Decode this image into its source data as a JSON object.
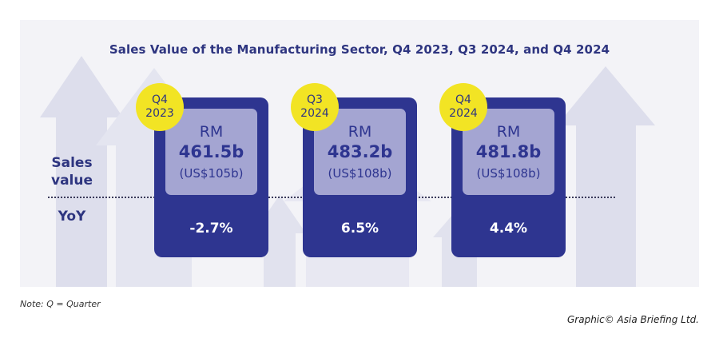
{
  "chart_data": {
    "type": "table",
    "title": "Sales Value of the Manufacturing Sector, Q4 2023, Q3 2024, and Q4 2024",
    "row_labels": {
      "sales": "Sales\nvalue",
      "yoy": "YoY"
    },
    "periods": [
      {
        "quarter": "Q4",
        "year": "2023",
        "currency": "RM",
        "value_label": "461.5b",
        "usd_label": "(US$105b)",
        "yoy_label": "-2.7%",
        "value_rm_billion": 461.5,
        "value_usd_billion": 105,
        "yoy_percent": -2.7
      },
      {
        "quarter": "Q3",
        "year": "2024",
        "currency": "RM",
        "value_label": "483.2b",
        "usd_label": "(US$108b)",
        "yoy_label": "6.5%",
        "value_rm_billion": 483.2,
        "value_usd_billion": 108,
        "yoy_percent": 6.5
      },
      {
        "quarter": "Q4",
        "year": "2024",
        "currency": "RM",
        "value_label": "481.8b",
        "usd_label": "(US$108b)",
        "yoy_label": "4.4%",
        "value_rm_billion": 481.8,
        "value_usd_billion": 108,
        "yoy_percent": 4.4
      }
    ],
    "colors": {
      "card": "#2e3590",
      "value_box": "#a4a5d2",
      "badge": "#f2e424",
      "text": "#2e3580"
    }
  },
  "footer": {
    "note": "Note: Q = Quarter",
    "credit": "Graphic© Asia Briefing Ltd."
  }
}
